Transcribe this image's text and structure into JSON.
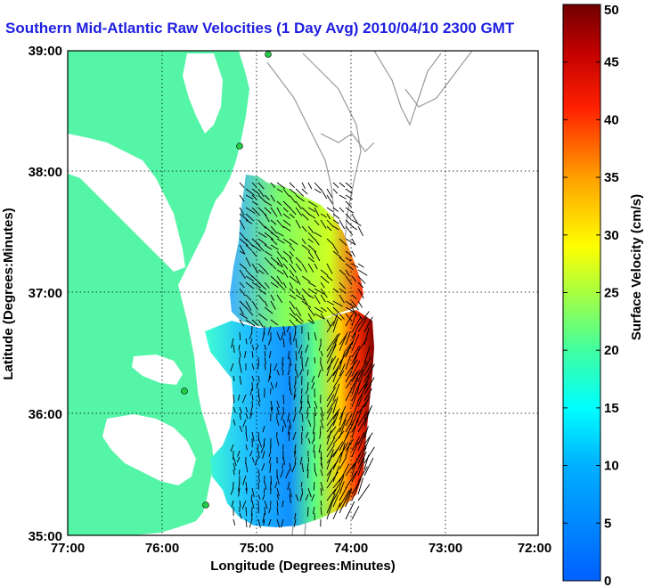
{
  "title": "Southern Mid-Atlantic Raw Velocities (1 Day Avg) 2010/04/10 2300 GMT",
  "x_axis": {
    "label": "Longitude (Degrees:Minutes)",
    "ticks": [
      "77:00",
      "76:00",
      "75:00",
      "74:00",
      "73:00",
      "72:00"
    ]
  },
  "y_axis": {
    "label": "Latitude (Degrees:Minutes)",
    "ticks": [
      "39:00",
      "38:00",
      "37:00",
      "36:00",
      "35:00"
    ]
  },
  "colorbar": {
    "label": "Surface Velocity (cm/s)",
    "ticks": [
      "0",
      "5",
      "10",
      "15",
      "20",
      "25",
      "30",
      "35",
      "40",
      "45",
      "50"
    ],
    "min": 0,
    "max": 50
  },
  "colors": {
    "land": "#55f5a8",
    "title": "#1f1fe0",
    "bathymetry": "#9a9a9a",
    "station": "#22cc44"
  },
  "chart_data": {
    "type": "heatmap",
    "title": "Southern Mid-Atlantic Raw Velocities (1 Day Avg) 2010/04/10 2300 GMT",
    "xlabel": "Longitude (Degrees:Minutes)",
    "ylabel": "Latitude (Degrees:Minutes)",
    "xlim": [
      -77,
      -72
    ],
    "ylim": [
      35,
      39
    ],
    "colorbar_range": [
      0,
      50
    ],
    "colorbar_label": "Surface Velocity (cm/s)",
    "grid": true
  }
}
